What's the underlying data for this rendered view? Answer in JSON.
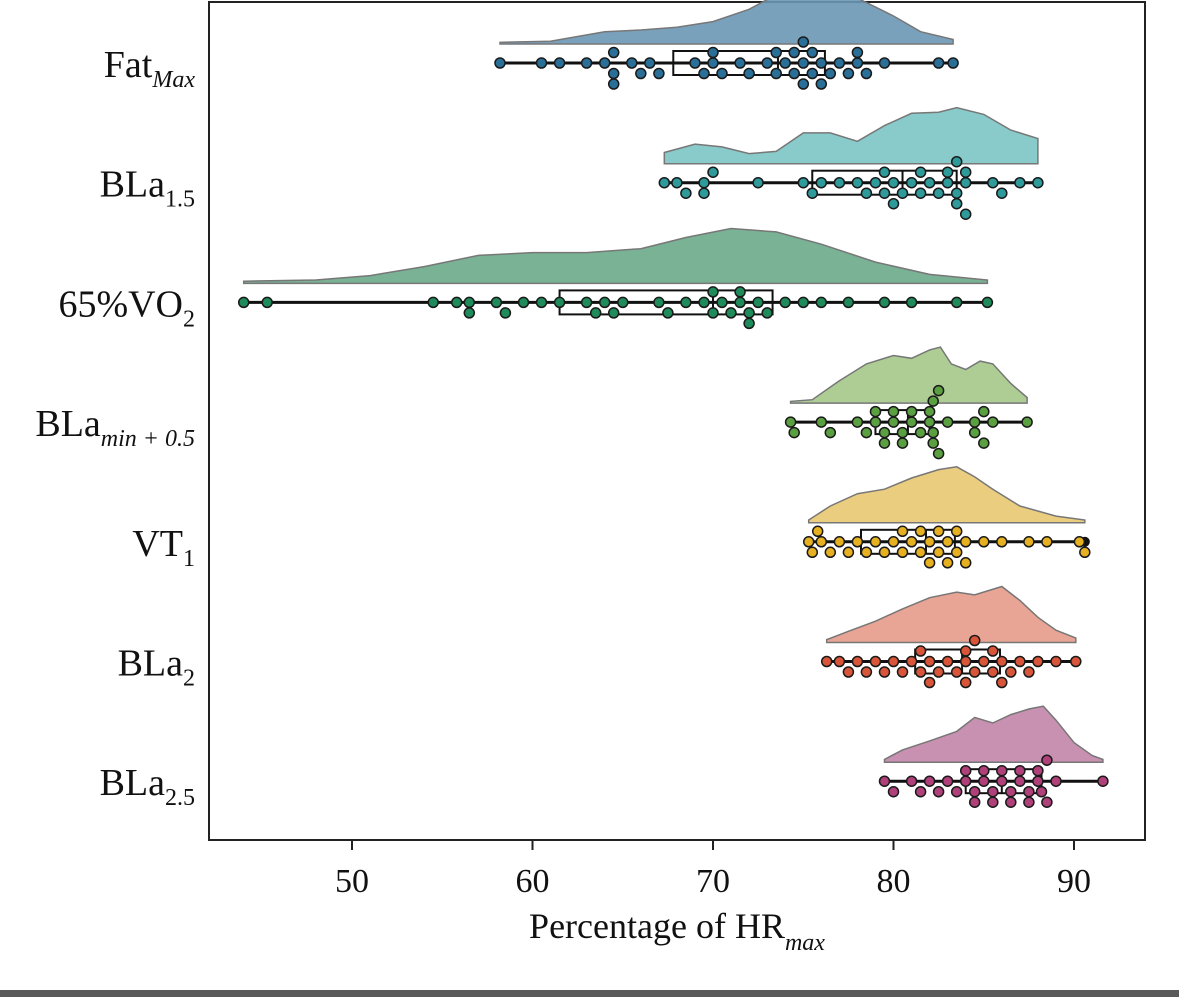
{
  "chart_data": {
    "type": "raincloud",
    "xlabel": {
      "main": "Percentage of HR",
      "sub": "max"
    },
    "xlim": [
      42,
      92.5
    ],
    "xticks": [
      50,
      60,
      70,
      80,
      90
    ],
    "xtick_labels": [
      "50",
      "60",
      "70",
      "80",
      "90"
    ],
    "grid": false,
    "legend": "none",
    "categories": [
      {
        "label_main": "Fat",
        "label_sub": "Max",
        "sub_italic": true,
        "color": "#2a6f97",
        "cloud_color": "#6c97b5",
        "whisker": [
          58.2,
          83.3
        ],
        "box": [
          67.8,
          76.2
        ],
        "median": 73.6,
        "density": [
          [
            58.2,
            0.03
          ],
          [
            61,
            0.05
          ],
          [
            64,
            0.22
          ],
          [
            66,
            0.25
          ],
          [
            68,
            0.3
          ],
          [
            70,
            0.4
          ],
          [
            72,
            0.62
          ],
          [
            73.5,
            0.88
          ],
          [
            75,
            1.0
          ],
          [
            76.5,
            0.96
          ],
          [
            78,
            0.82
          ],
          [
            80,
            0.5
          ],
          [
            81.5,
            0.22
          ],
          [
            83.3,
            0.08
          ]
        ],
        "points": [
          58.2,
          60.5,
          61.5,
          63.0,
          64.0,
          64.5,
          64.5,
          64.5,
          65.5,
          66.0,
          66.5,
          67.0,
          69.0,
          69.5,
          70.0,
          70.0,
          70.5,
          71.5,
          72.0,
          73.0,
          73.5,
          73.5,
          74.0,
          74.5,
          74.5,
          75.0,
          75.0,
          75.0,
          75.5,
          75.5,
          76.0,
          76.0,
          76.5,
          77.0,
          77.5,
          78.0,
          78.0,
          78.5,
          79.5,
          82.5,
          83.3
        ]
      },
      {
        "label_main": "BLa",
        "label_sub": "1.5",
        "sub_italic": false,
        "color": "#2f9a9a",
        "cloud_color": "#7cc4c4",
        "whisker": [
          67.3,
          88.0
        ],
        "box": [
          75.5,
          83.5
        ],
        "median": 80.5,
        "density": [
          [
            67.3,
            0.2
          ],
          [
            69,
            0.35
          ],
          [
            70.5,
            0.3
          ],
          [
            72,
            0.18
          ],
          [
            73.5,
            0.22
          ],
          [
            75,
            0.55
          ],
          [
            76.5,
            0.55
          ],
          [
            78,
            0.4
          ],
          [
            79.5,
            0.68
          ],
          [
            81,
            0.9
          ],
          [
            82.5,
            0.92
          ],
          [
            83.5,
            1.0
          ],
          [
            85,
            0.88
          ],
          [
            86.5,
            0.6
          ],
          [
            88,
            0.45
          ]
        ],
        "points": [
          67.3,
          68.0,
          68.5,
          69.5,
          69.5,
          70.0,
          72.5,
          75.0,
          75.5,
          76.0,
          77.0,
          78.0,
          78.5,
          79.0,
          79.5,
          79.5,
          80.0,
          80.0,
          80.5,
          81.0,
          81.5,
          81.5,
          82.0,
          82.5,
          83.0,
          83.0,
          83.5,
          83.5,
          83.5,
          84.0,
          84.0,
          84.0,
          85.5,
          86.0,
          87.0,
          88.0
        ]
      },
      {
        "label_main": "65%VO",
        "label_sub": "2",
        "sub_italic": false,
        "color": "#1f8a5a",
        "cloud_color": "#6aaa88",
        "whisker": [
          44.0,
          85.2
        ],
        "box": [
          61.5,
          73.3
        ],
        "median": 70.0,
        "density": [
          [
            44,
            0.04
          ],
          [
            48,
            0.06
          ],
          [
            51,
            0.14
          ],
          [
            54,
            0.3
          ],
          [
            57,
            0.5
          ],
          [
            60,
            0.55
          ],
          [
            63,
            0.55
          ],
          [
            66,
            0.62
          ],
          [
            68.5,
            0.82
          ],
          [
            71,
            0.98
          ],
          [
            73.5,
            0.92
          ],
          [
            76,
            0.7
          ],
          [
            79,
            0.38
          ],
          [
            82,
            0.16
          ],
          [
            85.2,
            0.06
          ]
        ],
        "points": [
          44.0,
          45.3,
          54.5,
          55.8,
          56.5,
          56.5,
          58.0,
          58.5,
          59.5,
          60.5,
          61.5,
          63.0,
          63.5,
          64.0,
          64.5,
          65.0,
          67.0,
          67.5,
          68.5,
          69.5,
          70.0,
          70.0,
          70.5,
          71.0,
          71.5,
          71.5,
          72.0,
          72.0,
          72.5,
          73.0,
          74.0,
          75.0,
          76.0,
          77.5,
          79.5,
          81.0,
          83.5,
          85.2
        ]
      },
      {
        "label_main": "BLa",
        "label_sub": "min + 0.5",
        "sub_italic": true,
        "color": "#5aa040",
        "cloud_color": "#a4c88a",
        "whisker": [
          74.3,
          87.4
        ],
        "box": [
          79.0,
          82.0
        ],
        "median": 80.8,
        "density": [
          [
            74.3,
            0.03
          ],
          [
            75.5,
            0.06
          ],
          [
            77,
            0.4
          ],
          [
            78.5,
            0.7
          ],
          [
            80,
            0.85
          ],
          [
            81,
            0.8
          ],
          [
            82,
            0.95
          ],
          [
            82.6,
            1.0
          ],
          [
            83.2,
            0.7
          ],
          [
            84,
            0.6
          ],
          [
            84.8,
            0.75
          ],
          [
            85.5,
            0.7
          ],
          [
            86.5,
            0.35
          ],
          [
            87.4,
            0.1
          ]
        ],
        "points": [
          74.3,
          74.5,
          76.0,
          76.5,
          78.0,
          78.5,
          79.0,
          79.0,
          79.5,
          79.5,
          80.0,
          80.0,
          80.5,
          80.5,
          81.0,
          81.0,
          81.5,
          82.0,
          82.0,
          82.2,
          82.2,
          82.2,
          82.5,
          82.5,
          83.0,
          84.5,
          84.5,
          85.0,
          85.0,
          85.5,
          87.4
        ]
      },
      {
        "label_main": "VT",
        "label_sub": "1",
        "sub_italic": false,
        "color": "#e6b020",
        "cloud_color": "#e8c870",
        "whisker": [
          75.3,
          90.6
        ],
        "box": [
          78.2,
          83.4
        ],
        "median": 81.8,
        "density": [
          [
            75.3,
            0.05
          ],
          [
            76.5,
            0.3
          ],
          [
            78,
            0.52
          ],
          [
            79.5,
            0.6
          ],
          [
            81,
            0.8
          ],
          [
            82.5,
            0.95
          ],
          [
            83.5,
            1.0
          ],
          [
            84.5,
            0.82
          ],
          [
            85.5,
            0.6
          ],
          [
            87,
            0.3
          ],
          [
            89,
            0.12
          ],
          [
            90.6,
            0.05
          ]
        ],
        "points": [
          75.3,
          75.5,
          75.8,
          76.0,
          76.5,
          77.0,
          77.5,
          78.0,
          78.5,
          79.0,
          79.5,
          80.0,
          80.5,
          80.5,
          81.0,
          81.5,
          81.5,
          82.0,
          82.0,
          82.5,
          82.5,
          83.0,
          83.0,
          83.5,
          83.5,
          84.0,
          84.0,
          85.0,
          86.0,
          87.5,
          88.5,
          90.3,
          90.6
        ]
      },
      {
        "label_main": "BLa",
        "label_sub": "2",
        "sub_italic": false,
        "color": "#d9553a",
        "cloud_color": "#e69a88",
        "whisker": [
          76.3,
          90.1
        ],
        "box": [
          81.2,
          85.9
        ],
        "median": 83.8,
        "density": [
          [
            76.3,
            0.05
          ],
          [
            77.5,
            0.2
          ],
          [
            79,
            0.38
          ],
          [
            80.5,
            0.6
          ],
          [
            82,
            0.8
          ],
          [
            83.5,
            0.9
          ],
          [
            84.5,
            0.85
          ],
          [
            86,
            1.0
          ],
          [
            87,
            0.75
          ],
          [
            88,
            0.45
          ],
          [
            89,
            0.22
          ],
          [
            90.1,
            0.08
          ]
        ],
        "points": [
          76.3,
          77.0,
          77.5,
          78.0,
          78.5,
          79.0,
          79.5,
          80.0,
          80.5,
          81.0,
          81.5,
          81.5,
          82.0,
          82.0,
          82.5,
          83.0,
          83.5,
          84.0,
          84.0,
          84.0,
          84.5,
          84.5,
          85.0,
          85.5,
          85.5,
          86.0,
          86.0,
          86.5,
          87.0,
          87.5,
          88.0,
          89.0,
          90.1
        ]
      },
      {
        "label_main": "BLa",
        "label_sub": "2.5",
        "sub_italic": false,
        "color": "#b0407a",
        "cloud_color": "#c284a8",
        "whisker": [
          79.5,
          91.6
        ],
        "box": [
          84.0,
          88.2
        ],
        "median": 86.0,
        "density": [
          [
            79.5,
            0.05
          ],
          [
            80.5,
            0.22
          ],
          [
            82,
            0.38
          ],
          [
            83.5,
            0.55
          ],
          [
            84.5,
            0.8
          ],
          [
            85.5,
            0.7
          ],
          [
            86.5,
            0.85
          ],
          [
            87.5,
            0.95
          ],
          [
            88.3,
            1.0
          ],
          [
            89,
            0.75
          ],
          [
            90,
            0.35
          ],
          [
            91,
            0.12
          ],
          [
            91.6,
            0.05
          ]
        ],
        "points": [
          79.5,
          80.0,
          81.0,
          81.5,
          82.0,
          82.5,
          83.0,
          83.5,
          84.0,
          84.0,
          84.5,
          84.5,
          85.0,
          85.0,
          85.5,
          85.5,
          86.0,
          86.0,
          86.5,
          86.5,
          87.0,
          87.0,
          87.5,
          87.5,
          88.0,
          88.0,
          88.2,
          88.5,
          88.5,
          89.0,
          91.6
        ]
      }
    ]
  }
}
